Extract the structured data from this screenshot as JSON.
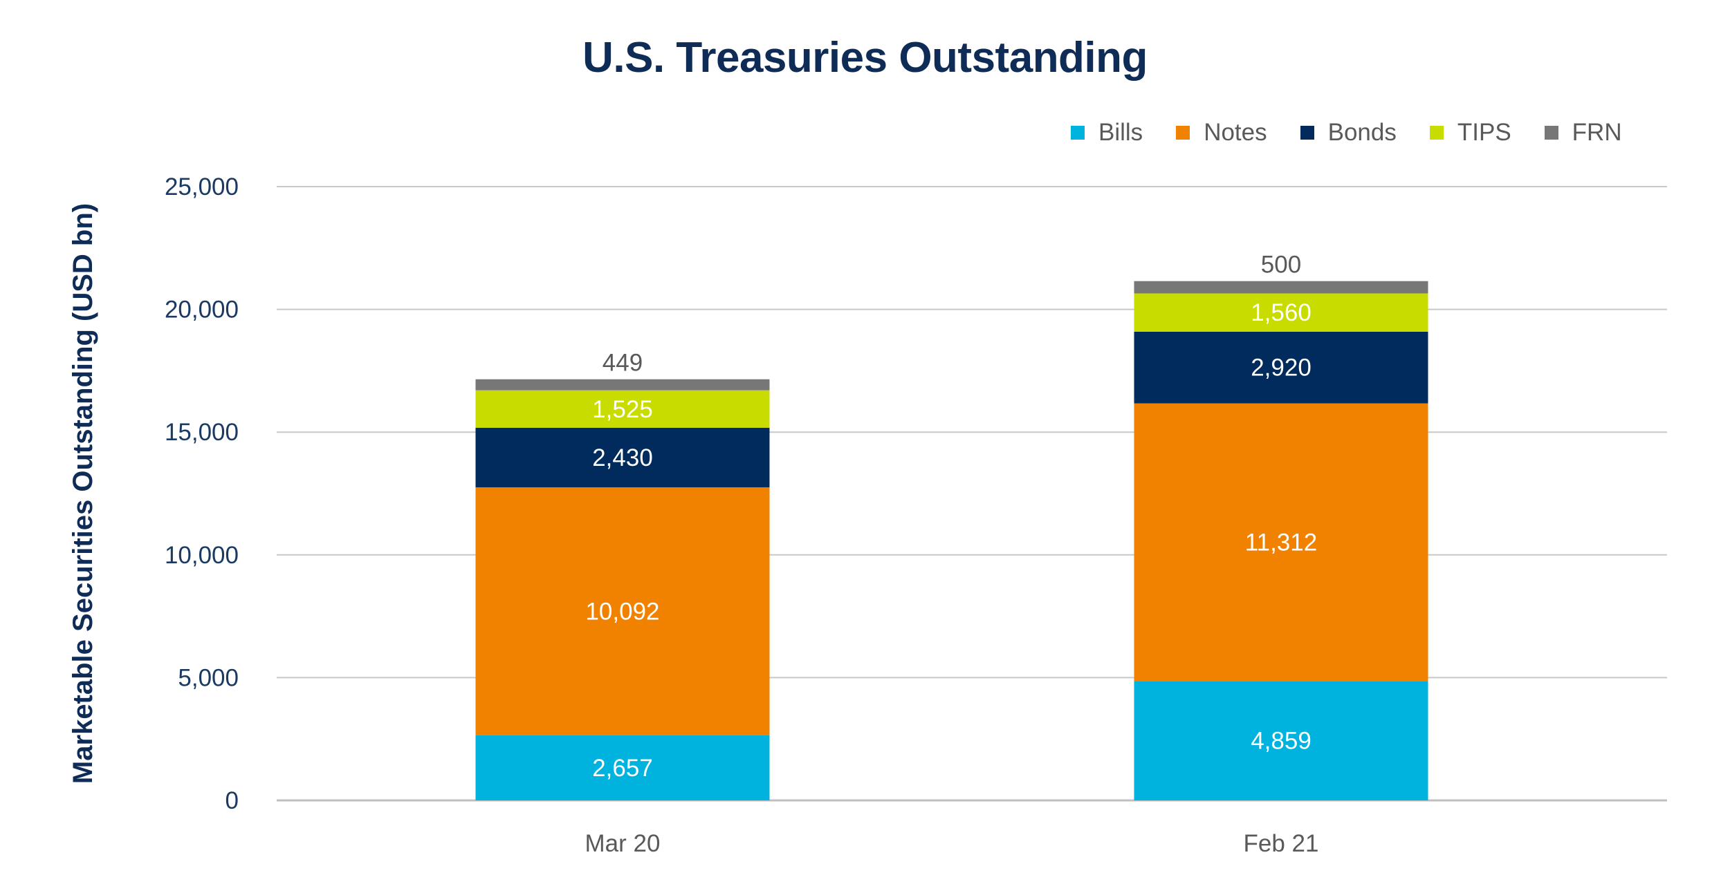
{
  "chart_data": {
    "type": "bar",
    "stacked": true,
    "title": "U.S. Treasuries Outstanding",
    "ylabel": "Marketable Securities Outstanding (USD bn)",
    "xlabel": "",
    "categories": [
      "Mar 20",
      "Feb 21"
    ],
    "series": [
      {
        "name": "Bills",
        "color": "#00b2de",
        "values": [
          2657,
          4859
        ],
        "labels": [
          "2,657",
          "4,859"
        ]
      },
      {
        "name": "Notes",
        "color": "#f18200",
        "values": [
          10092,
          11312
        ],
        "labels": [
          "10,092",
          "11,312"
        ]
      },
      {
        "name": "Bonds",
        "color": "#002b5c",
        "values": [
          2430,
          2920
        ],
        "labels": [
          "2,430",
          "2,920"
        ]
      },
      {
        "name": "TIPS",
        "color": "#c8dc00",
        "values": [
          1525,
          1560
        ],
        "labels": [
          "1,525",
          "1,560"
        ]
      },
      {
        "name": "FRN",
        "color": "#777777",
        "values": [
          449,
          500
        ],
        "labels": [
          "449",
          "500"
        ]
      }
    ],
    "ylim": [
      0,
      25000
    ],
    "yticks": [
      0,
      5000,
      10000,
      15000,
      20000,
      25000
    ],
    "ytick_labels": [
      "0",
      "5,000",
      "10,000",
      "15,000",
      "20,000",
      "25,000"
    ],
    "grid": true,
    "legend_position": "top-right"
  }
}
